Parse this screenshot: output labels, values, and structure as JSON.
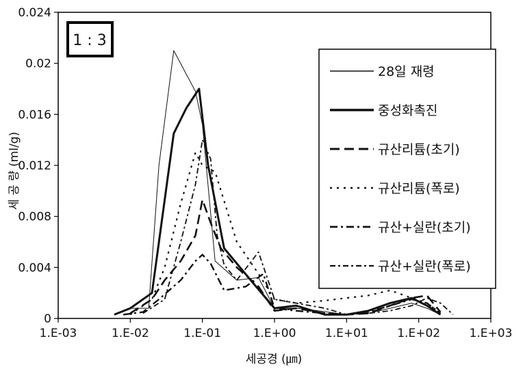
{
  "chart_data": {
    "type": "line",
    "title": "",
    "annotation": "1 : 3",
    "xlabel": "세공경 (㎛)",
    "ylabel": "세 공 량 (ml/g)",
    "xscale": "log",
    "xlim": [
      0.001,
      1000
    ],
    "ylim": [
      0,
      0.024
    ],
    "x_tick_labels": [
      "1.E-03",
      "1.E-02",
      "1.E-01",
      "1.E+00",
      "1.E+01",
      "1.E+02",
      "1.E+03"
    ],
    "y_tick_labels": [
      "0",
      "0.004",
      "0.008",
      "0.012",
      "0.016",
      "0.02",
      "0.024"
    ],
    "grid": false,
    "legend": "top-right",
    "series": [
      {
        "name": "28일 재령",
        "style": "thin",
        "x": [
          0.006,
          0.01,
          0.018,
          0.025,
          0.04,
          0.08,
          0.1,
          0.15,
          0.3,
          0.6,
          1.0,
          2.0,
          4.0,
          10,
          20,
          40,
          80,
          130,
          200
        ],
        "y": [
          0.0003,
          0.0008,
          0.0008,
          0.012,
          0.021,
          0.0178,
          0.0152,
          0.0045,
          0.003,
          0.0032,
          0.0008,
          0.0008,
          0.0006,
          0.0003,
          0.0004,
          0.0008,
          0.0012,
          0.0008,
          0.0003
        ]
      },
      {
        "name": "중성화촉진",
        "style": "thick",
        "x": [
          0.006,
          0.01,
          0.02,
          0.025,
          0.04,
          0.06,
          0.09,
          0.12,
          0.2,
          0.5,
          1.0,
          2.0,
          5.0,
          10,
          20,
          40,
          80,
          130,
          200
        ],
        "y": [
          0.0003,
          0.0008,
          0.002,
          0.006,
          0.0145,
          0.0165,
          0.018,
          0.012,
          0.0055,
          0.0028,
          0.0008,
          0.001,
          0.0003,
          0.0003,
          0.0006,
          0.0012,
          0.0016,
          0.001,
          0.0003
        ]
      },
      {
        "name": "규산리튬(초기)",
        "style": "long-dash",
        "x": [
          0.01,
          0.02,
          0.03,
          0.05,
          0.08,
          0.1,
          0.13,
          0.18,
          0.3,
          0.6,
          1.0,
          2.0,
          5.0,
          10,
          20,
          40,
          80,
          130,
          200
        ],
        "y": [
          0.0004,
          0.0015,
          0.003,
          0.0045,
          0.0065,
          0.0093,
          0.0075,
          0.0055,
          0.004,
          0.0025,
          0.0006,
          0.0008,
          0.0004,
          0.0003,
          0.0004,
          0.001,
          0.0016,
          0.0018,
          0.0005
        ]
      },
      {
        "name": "규산리튬(폭로)",
        "style": "dotted",
        "x": [
          0.01,
          0.02,
          0.03,
          0.05,
          0.08,
          0.1,
          0.15,
          0.3,
          0.6,
          1.0,
          2.0,
          5.0,
          10,
          20,
          40,
          80,
          130,
          200
        ],
        "y": [
          0.0003,
          0.0015,
          0.004,
          0.009,
          0.013,
          0.012,
          0.0115,
          0.006,
          0.0035,
          0.0015,
          0.0012,
          0.0014,
          0.0016,
          0.0018,
          0.0022,
          0.0016,
          0.0012,
          0.0004
        ]
      },
      {
        "name": "규산+실란(초기)",
        "style": "dash-dot",
        "x": [
          0.008,
          0.015,
          0.025,
          0.05,
          0.08,
          0.1,
          0.13,
          0.2,
          0.4,
          0.7,
          1.0,
          2.0,
          5.0,
          10,
          20,
          40,
          80,
          130,
          200
        ],
        "y": [
          0.0003,
          0.0005,
          0.0015,
          0.003,
          0.0045,
          0.005,
          0.0043,
          0.0022,
          0.0025,
          0.0035,
          0.0008,
          0.0006,
          0.0004,
          0.0003,
          0.0005,
          0.001,
          0.0015,
          0.0012,
          0.0004
        ]
      },
      {
        "name": "규산+실란(폭로)",
        "style": "dash-dot-fine",
        "x": [
          0.015,
          0.03,
          0.05,
          0.08,
          0.1,
          0.13,
          0.16,
          0.2,
          0.3,
          0.6,
          1.0,
          2.0,
          5.0,
          10,
          20,
          40,
          80,
          130,
          200,
          300
        ],
        "y": [
          0.0004,
          0.0015,
          0.006,
          0.0105,
          0.014,
          0.0125,
          0.0065,
          0.0042,
          0.003,
          0.0052,
          0.0015,
          0.0012,
          0.0008,
          0.0003,
          0.0004,
          0.0006,
          0.001,
          0.0016,
          0.0012,
          0.0003
        ]
      }
    ]
  }
}
